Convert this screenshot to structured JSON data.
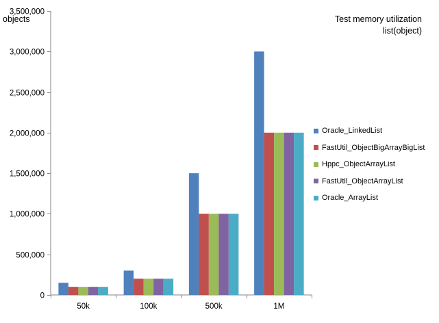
{
  "chart_data": {
    "type": "bar",
    "title_line1": "Test  memory utilization",
    "title_line2": "list(object)",
    "ylabel": "objects",
    "categories": [
      "50k",
      "100k",
      "500k",
      "1M"
    ],
    "ylim": [
      0,
      3500000
    ],
    "yticks": [
      0,
      500000,
      1000000,
      1500000,
      2000000,
      2500000,
      3000000,
      3500000
    ],
    "ytick_labels": [
      "0",
      "500,000",
      "1,000,000",
      "1,500,000",
      "2,000,000",
      "2,500,000",
      "3,000,000",
      "3,500,000"
    ],
    "grid": false,
    "legend_position": "right",
    "series": [
      {
        "name": "Oracle_LinkedList",
        "color": "#4F81BD",
        "values": [
          150000,
          300000,
          1500000,
          3000000
        ]
      },
      {
        "name": "FastUtil_ObjectBigArrayBigList",
        "color": "#C0504D",
        "values": [
          100000,
          200000,
          1000000,
          2000000
        ]
      },
      {
        "name": "Hppc_ObjectArrayList",
        "color": "#9BBB59",
        "values": [
          100000,
          200000,
          1000000,
          2000000
        ]
      },
      {
        "name": "FastUtil_ObjectArrayList",
        "color": "#8064A2",
        "values": [
          100000,
          200000,
          1000000,
          2000000
        ]
      },
      {
        "name": "Oracle_ArrayList",
        "color": "#4BACC6",
        "values": [
          100000,
          200000,
          1000000,
          2000000
        ]
      }
    ]
  }
}
